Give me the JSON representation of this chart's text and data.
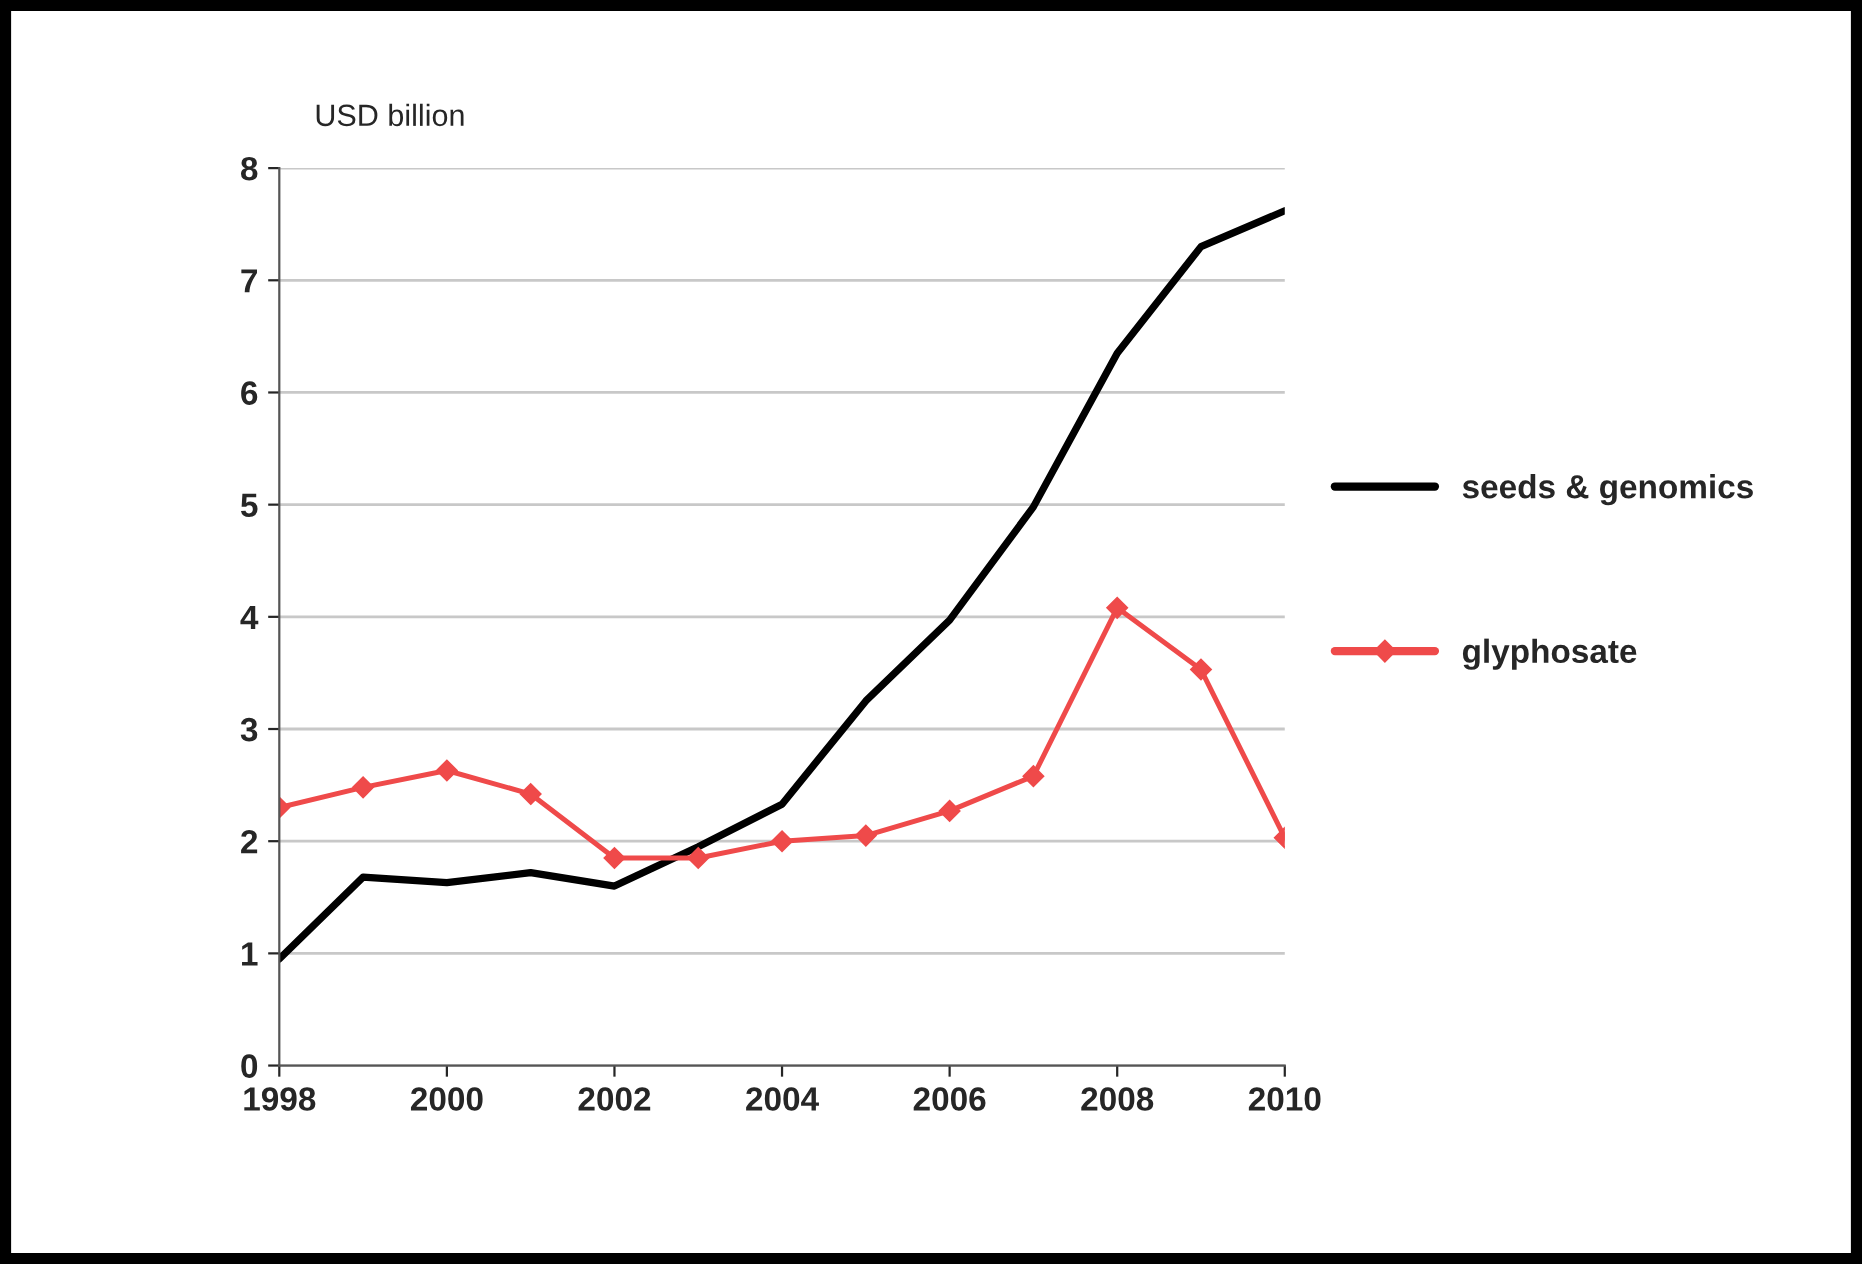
{
  "chart_data": {
    "type": "line",
    "ylabel": "USD billion",
    "x": [
      1998,
      1999,
      2000,
      2001,
      2002,
      2003,
      2004,
      2005,
      2006,
      2007,
      2008,
      2009,
      2010
    ],
    "series": [
      {
        "name": "seeds & genomics",
        "color": "#000000",
        "marker": "none",
        "values": [
          0.95,
          1.68,
          1.63,
          1.72,
          1.6,
          1.95,
          2.33,
          3.25,
          3.97,
          4.98,
          6.35,
          7.3,
          7.62
        ]
      },
      {
        "name": "glyphosate",
        "color": "#ef4a4a",
        "marker": "diamond",
        "values": [
          2.3,
          2.48,
          2.63,
          2.42,
          1.85,
          1.85,
          2.0,
          2.05,
          2.27,
          2.58,
          4.08,
          3.53,
          2.03
        ]
      }
    ],
    "xlim": [
      1998,
      2010
    ],
    "xticks": [
      1998,
      2000,
      2002,
      2004,
      2006,
      2008,
      2010
    ],
    "ylim": [
      0,
      8
    ],
    "yticks": [
      0,
      1,
      2,
      3,
      4,
      5,
      6,
      7,
      8
    ],
    "grid": "y",
    "legend": "right",
    "line_style": "solid"
  }
}
